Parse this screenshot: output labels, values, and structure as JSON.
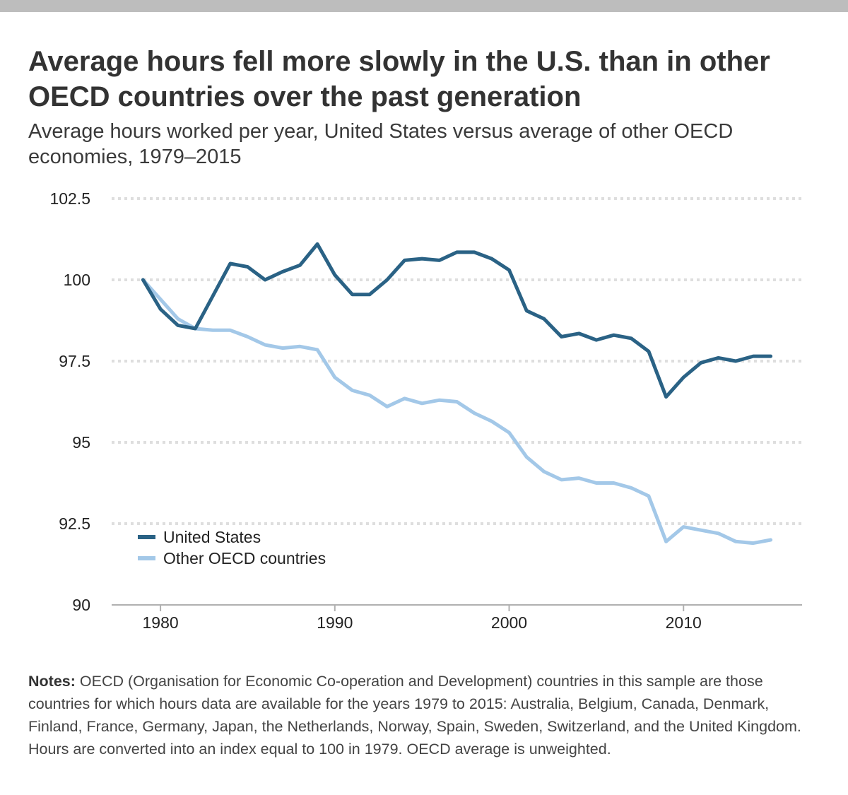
{
  "header": {
    "title": "Average hours fell more slowly in the U.S. than in other OECD countries over the past generation",
    "subtitle": "Average hours worked per year, United States versus average of other OECD economies, 1979–2015"
  },
  "notes": {
    "label": "Notes:",
    "text": "OECD (Organisation for Economic Co-operation and Development) countries in this sample are those countries for which hours data are available for the years 1979 to 2015: Australia, Belgium, Canada, Denmark, Finland, France, Germany, Japan, the Netherlands, Norway, Spain, Sweden, Switzerland, and the United Kingdom. Hours are converted into an index equal to 100 in 1979. OECD average is unweighted."
  },
  "colors": {
    "us": "#2a6285",
    "oecd": "#a3c8e8",
    "grid": "#dedede",
    "axis": "#b0b0b0"
  },
  "chart_data": {
    "type": "line",
    "x": [
      1979,
      1980,
      1981,
      1982,
      1983,
      1984,
      1985,
      1986,
      1987,
      1988,
      1989,
      1990,
      1991,
      1992,
      1993,
      1994,
      1995,
      1996,
      1997,
      1998,
      1999,
      2000,
      2001,
      2002,
      2003,
      2004,
      2005,
      2006,
      2007,
      2008,
      2009,
      2010,
      2011,
      2012,
      2013,
      2014,
      2015
    ],
    "series": [
      {
        "name": "United States",
        "color": "#2a6285",
        "values": [
          100.0,
          99.1,
          98.6,
          98.5,
          99.5,
          100.5,
          100.4,
          100.0,
          100.25,
          100.45,
          101.1,
          100.15,
          99.55,
          99.55,
          100.0,
          100.6,
          100.65,
          100.6,
          100.85,
          100.85,
          100.65,
          100.3,
          99.05,
          98.8,
          98.25,
          98.35,
          98.15,
          98.3,
          98.2,
          97.8,
          96.4,
          97.0,
          97.45,
          97.6,
          97.5,
          97.65,
          97.65
        ]
      },
      {
        "name": "Other OECD countries",
        "color": "#a3c8e8",
        "values": [
          100.0,
          99.4,
          98.8,
          98.5,
          98.45,
          98.45,
          98.25,
          98.0,
          97.9,
          97.95,
          97.85,
          97.0,
          96.6,
          96.45,
          96.1,
          96.35,
          96.2,
          96.3,
          96.25,
          95.9,
          95.65,
          95.3,
          94.55,
          94.1,
          93.85,
          93.9,
          93.75,
          93.75,
          93.6,
          93.35,
          91.95,
          92.4,
          92.3,
          92.2,
          91.95,
          91.9,
          92.0
        ]
      }
    ],
    "x_ticks": [
      "1980",
      "1990",
      "2000",
      "2010"
    ],
    "x_tick_values": [
      1980,
      1990,
      2000,
      2010
    ],
    "y_ticks": [
      "102.5",
      "100",
      "97.5",
      "95",
      "92.5",
      "90"
    ],
    "y_tick_values": [
      102.5,
      100,
      97.5,
      95,
      92.5,
      90
    ],
    "xlim": [
      1977.2,
      2016.8
    ],
    "ylim": [
      90,
      102.5
    ],
    "grid": true,
    "legend_position": "bottom-left"
  }
}
